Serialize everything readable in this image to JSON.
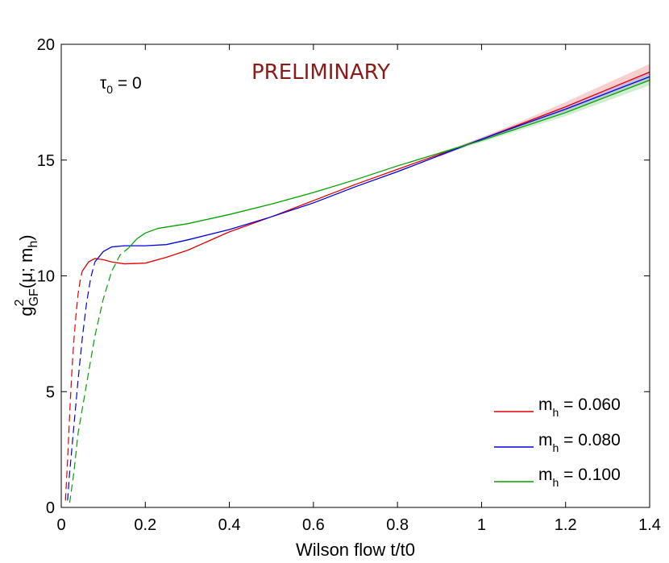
{
  "chart_data": {
    "type": "line",
    "title": "",
    "annotations": {
      "preliminary": "PRELIMINARY",
      "tau_label": "τ",
      "tau_sub": "0",
      "tau_value": " = 0",
      "preliminary_color": "#8b1a1a"
    },
    "xlabel": "Wilson flow t/t0",
    "ylabel": {
      "base": "g",
      "sup": "2",
      "sub": "GF",
      "args": "(μ; m",
      "args_sub": "h",
      "close": ")"
    },
    "xlim": [
      0,
      1.4
    ],
    "ylim": [
      0,
      20
    ],
    "xticks": [
      0,
      0.2,
      0.4,
      0.6,
      0.8,
      1,
      1.2,
      1.4
    ],
    "xtick_labels": [
      "0",
      "0.2",
      "0.4",
      "0.6",
      "0.8",
      "1",
      "1.2",
      "1.4"
    ],
    "yticks": [
      0,
      5,
      10,
      15,
      20
    ],
    "ytick_labels": [
      "0",
      "5",
      "10",
      "15",
      "20"
    ],
    "legend_position": "bottom-right",
    "series": [
      {
        "name_base": "m",
        "name_sub": "h",
        "name_value": " = 0.060",
        "color": "#e00000",
        "band_color": "#f4a8a8",
        "dashed": [
          [
            0.01,
            0.3
          ],
          [
            0.015,
            2.0
          ],
          [
            0.02,
            4.0
          ],
          [
            0.025,
            5.8
          ],
          [
            0.03,
            7.2
          ],
          [
            0.035,
            8.3
          ],
          [
            0.04,
            9.2
          ],
          [
            0.045,
            9.8
          ],
          [
            0.05,
            10.2
          ]
        ],
        "solid": [
          [
            0.05,
            10.2
          ],
          [
            0.065,
            10.6
          ],
          [
            0.08,
            10.75
          ],
          [
            0.1,
            10.7
          ],
          [
            0.12,
            10.6
          ],
          [
            0.15,
            10.52
          ],
          [
            0.2,
            10.55
          ],
          [
            0.25,
            10.8
          ],
          [
            0.3,
            11.1
          ],
          [
            0.4,
            11.9
          ],
          [
            0.5,
            12.55
          ],
          [
            0.6,
            13.25
          ],
          [
            0.7,
            13.95
          ],
          [
            0.8,
            14.6
          ],
          [
            0.9,
            15.25
          ],
          [
            1.0,
            15.9
          ],
          [
            1.1,
            16.6
          ],
          [
            1.2,
            17.3
          ],
          [
            1.3,
            18.05
          ],
          [
            1.4,
            18.8
          ]
        ],
        "band": [
          [
            0.9,
            0.05
          ],
          [
            1.0,
            0.08
          ],
          [
            1.1,
            0.12
          ],
          [
            1.2,
            0.2
          ],
          [
            1.3,
            0.28
          ],
          [
            1.4,
            0.35
          ]
        ]
      },
      {
        "name_base": "m",
        "name_sub": "h",
        "name_value": " = 0.080",
        "color": "#0000e0",
        "band_color": "#a8a8f4",
        "dashed": [
          [
            0.015,
            0.3
          ],
          [
            0.02,
            1.5
          ],
          [
            0.03,
            3.5
          ],
          [
            0.04,
            5.5
          ],
          [
            0.05,
            7.3
          ],
          [
            0.06,
            8.8
          ],
          [
            0.07,
            9.9
          ],
          [
            0.08,
            10.6
          ]
        ],
        "solid": [
          [
            0.08,
            10.6
          ],
          [
            0.1,
            11.05
          ],
          [
            0.12,
            11.25
          ],
          [
            0.15,
            11.3
          ],
          [
            0.2,
            11.3
          ],
          [
            0.25,
            11.35
          ],
          [
            0.3,
            11.55
          ],
          [
            0.4,
            12.0
          ],
          [
            0.5,
            12.55
          ],
          [
            0.6,
            13.15
          ],
          [
            0.7,
            13.85
          ],
          [
            0.8,
            14.5
          ],
          [
            0.9,
            15.2
          ],
          [
            1.0,
            15.9
          ],
          [
            1.1,
            16.55
          ],
          [
            1.2,
            17.2
          ],
          [
            1.3,
            17.9
          ],
          [
            1.4,
            18.6
          ]
        ],
        "band": [
          [
            0.9,
            0.05
          ],
          [
            1.0,
            0.07
          ],
          [
            1.2,
            0.12
          ],
          [
            1.4,
            0.18
          ]
        ]
      },
      {
        "name_base": "m",
        "name_sub": "h",
        "name_value": " = 0.100",
        "color": "#00a000",
        "band_color": "#a8e0a8",
        "dashed": [
          [
            0.02,
            0.2
          ],
          [
            0.03,
            1.5
          ],
          [
            0.04,
            3.2
          ],
          [
            0.06,
            5.3
          ],
          [
            0.08,
            7.4
          ],
          [
            0.1,
            9.0
          ],
          [
            0.12,
            10.2
          ],
          [
            0.14,
            10.9
          ],
          [
            0.16,
            11.2
          ]
        ],
        "solid": [
          [
            0.16,
            11.2
          ],
          [
            0.18,
            11.6
          ],
          [
            0.2,
            11.85
          ],
          [
            0.23,
            12.05
          ],
          [
            0.3,
            12.25
          ],
          [
            0.4,
            12.65
          ],
          [
            0.5,
            13.1
          ],
          [
            0.6,
            13.6
          ],
          [
            0.7,
            14.15
          ],
          [
            0.8,
            14.75
          ],
          [
            0.9,
            15.3
          ],
          [
            1.0,
            15.85
          ],
          [
            1.1,
            16.45
          ],
          [
            1.2,
            17.05
          ],
          [
            1.3,
            17.75
          ],
          [
            1.4,
            18.45
          ]
        ],
        "band": [
          [
            0.9,
            0.05
          ],
          [
            1.0,
            0.08
          ],
          [
            1.2,
            0.15
          ],
          [
            1.4,
            0.22
          ]
        ]
      }
    ]
  }
}
